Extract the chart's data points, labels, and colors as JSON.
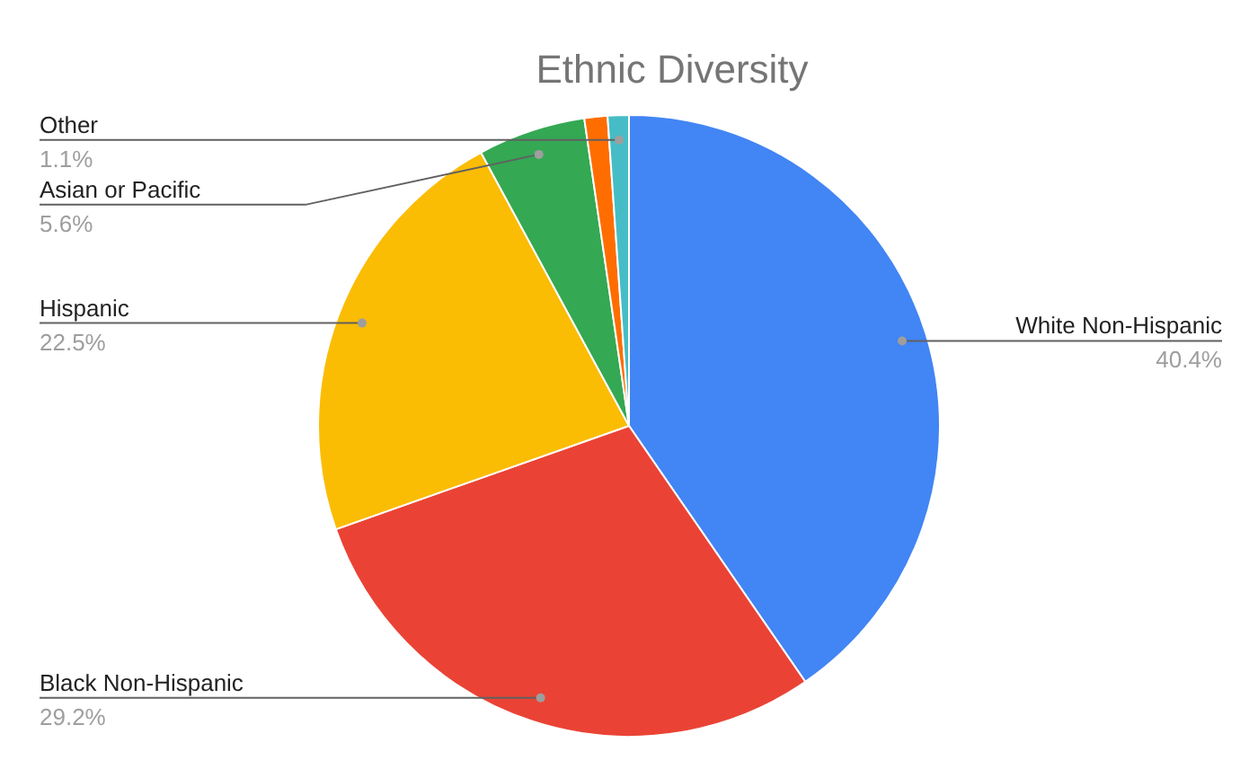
{
  "chart_data": {
    "type": "pie",
    "title": "Ethnic Diversity",
    "categories": [
      "White Non-Hispanic",
      "Black Non-Hispanic",
      "Hispanic",
      "Asian or Pacific",
      null,
      "Other"
    ],
    "values": [
      40.4,
      29.2,
      22.5,
      5.6,
      1.2,
      1.1
    ],
    "value_labels": [
      "40.4%",
      "29.2%",
      "22.5%",
      "5.6%",
      null,
      "1.1%"
    ],
    "colors": [
      "#4285f4",
      "#ea4335",
      "#fbbc04",
      "#34a853",
      "#ff6d01",
      "#46bdc6"
    ]
  }
}
